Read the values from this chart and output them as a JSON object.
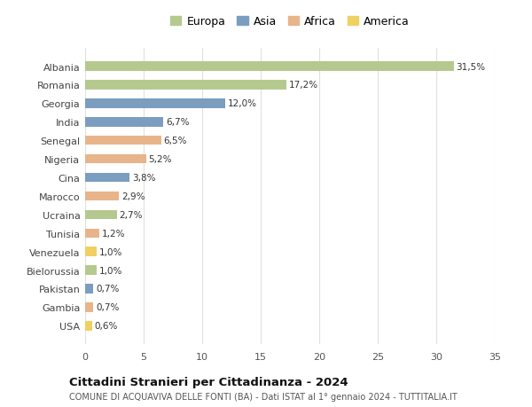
{
  "countries": [
    "Albania",
    "Romania",
    "Georgia",
    "India",
    "Senegal",
    "Nigeria",
    "Cina",
    "Marocco",
    "Ucraina",
    "Tunisia",
    "Venezuela",
    "Bielorussia",
    "Pakistan",
    "Gambia",
    "USA"
  ],
  "values": [
    31.5,
    17.2,
    12.0,
    6.7,
    6.5,
    5.2,
    3.8,
    2.9,
    2.7,
    1.2,
    1.0,
    1.0,
    0.7,
    0.7,
    0.6
  ],
  "labels": [
    "31,5%",
    "17,2%",
    "12,0%",
    "6,7%",
    "6,5%",
    "5,2%",
    "3,8%",
    "2,9%",
    "2,7%",
    "1,2%",
    "1,0%",
    "1,0%",
    "0,7%",
    "0,7%",
    "0,6%"
  ],
  "continents": [
    "Europa",
    "Europa",
    "Asia",
    "Asia",
    "Africa",
    "Africa",
    "Asia",
    "Africa",
    "Europa",
    "Africa",
    "America",
    "Europa",
    "Asia",
    "Africa",
    "America"
  ],
  "colors": {
    "Europa": "#b5c98e",
    "Asia": "#7b9dc0",
    "Africa": "#e8b48a",
    "America": "#f0d060"
  },
  "legend_order": [
    "Europa",
    "Asia",
    "Africa",
    "America"
  ],
  "xlim": [
    0,
    35
  ],
  "xticks": [
    0,
    5,
    10,
    15,
    20,
    25,
    30,
    35
  ],
  "title": "Cittadini Stranieri per Cittadinanza - 2024",
  "subtitle": "COMUNE DI ACQUAVIVA DELLE FONTI (BA) - Dati ISTAT al 1° gennaio 2024 - TUTTITALIA.IT",
  "bg_color": "#ffffff",
  "plot_bg_color": "#ffffff",
  "grid_color": "#e0e0e0"
}
